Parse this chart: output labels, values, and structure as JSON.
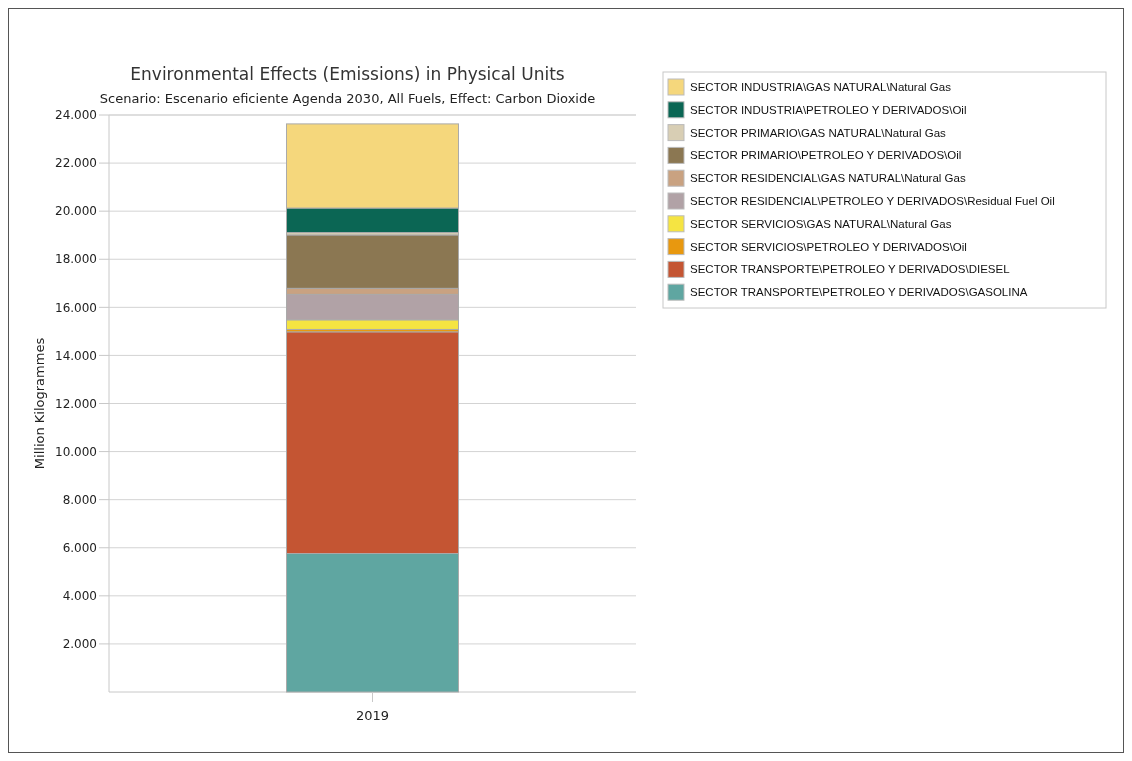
{
  "chart_data": {
    "type": "bar",
    "title": "Environmental Effects (Emissions) in Physical Units",
    "subtitle": "Scenario: Escenario eficiente Agenda 2030, All Fuels, Effect: Carbon Dioxide",
    "ylabel": "Million Kilogrammes",
    "categories": [
      "2019"
    ],
    "stacked": true,
    "ylim": [
      0,
      24000
    ],
    "yticks": [
      {
        "value": 2000,
        "label": "2.000"
      },
      {
        "value": 4000,
        "label": "4.000"
      },
      {
        "value": 6000,
        "label": "6.000"
      },
      {
        "value": 8000,
        "label": "8.000"
      },
      {
        "value": 10000,
        "label": "10.000"
      },
      {
        "value": 12000,
        "label": "12.000"
      },
      {
        "value": 14000,
        "label": "14.000"
      },
      {
        "value": 16000,
        "label": "16.000"
      },
      {
        "value": 18000,
        "label": "18.000"
      },
      {
        "value": 20000,
        "label": "20.000"
      },
      {
        "value": 22000,
        "label": "22.000"
      },
      {
        "value": 24000,
        "label": "24.000"
      }
    ],
    "grid": "y",
    "legend": "right",
    "series": [
      {
        "name": "SECTOR TRANSPORTE\\PETROLEO Y DERIVADOS\\GASOLINA",
        "color": "#5fa6a1",
        "values": [
          5760
        ]
      },
      {
        "name": "SECTOR TRANSPORTE\\PETROLEO Y DERIVADOS\\DIESEL",
        "color": "#c45533",
        "values": [
          9220
        ]
      },
      {
        "name": "SECTOR SERVICIOS\\PETROLEO Y DERIVADOS\\Oil",
        "color": "#e8980f",
        "values": [
          100
        ]
      },
      {
        "name": "SECTOR SERVICIOS\\GAS NATURAL\\Natural Gas",
        "color": "#f5e442",
        "values": [
          400
        ]
      },
      {
        "name": "SECTOR RESIDENCIAL\\PETROLEO Y DERIVADOS\\Residual Fuel Oil",
        "color": "#b1a2a6",
        "values": [
          1060
        ]
      },
      {
        "name": "SECTOR RESIDENCIAL\\GAS NATURAL\\Natural Gas",
        "color": "#c9a281",
        "values": [
          250
        ]
      },
      {
        "name": "SECTOR PRIMARIO\\PETROLEO Y DERIVADOS\\Oil",
        "color": "#8b7752",
        "values": [
          2220
        ]
      },
      {
        "name": "SECTOR PRIMARIO\\GAS NATURAL\\Natural Gas",
        "color": "#d8ceb4",
        "values": [
          100
        ]
      },
      {
        "name": "SECTOR INDUSTRIA\\PETROLEO Y DERIVADOS\\Oil",
        "color": "#0b6654",
        "values": [
          1020
        ]
      },
      {
        "name": "SECTOR INDUSTRIA\\GAS NATURAL\\Natural Gas",
        "color": "#f5d77c",
        "values": [
          3500
        ]
      }
    ]
  }
}
